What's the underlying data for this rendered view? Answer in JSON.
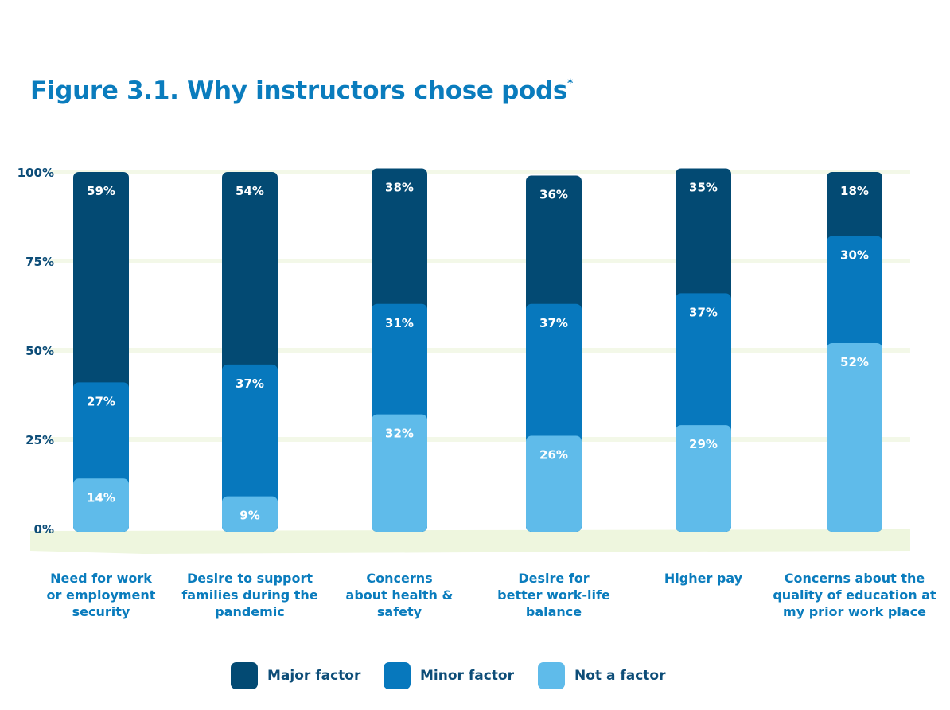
{
  "title": "Figure 3.1. Why instructors chose pods",
  "title_mark": "*",
  "chart_data": {
    "type": "bar",
    "stacked": true,
    "title": "Figure 3.1. Why instructors chose pods*",
    "xlabel": "",
    "ylabel": "",
    "ylim": [
      0,
      100
    ],
    "y_ticks": [
      "100%",
      "75%",
      "50%",
      "25%",
      "0%"
    ],
    "y_tick_values": [
      100,
      75,
      50,
      25,
      0
    ],
    "grid": true,
    "legend_position": "bottom",
    "categories": [
      [
        "Need for work",
        "or employment",
        "security"
      ],
      [
        "Desire to support",
        "families during the",
        "pandemic"
      ],
      [
        "Concerns",
        "about health &",
        "safety"
      ],
      [
        "Desire for",
        "better work-life",
        "balance"
      ],
      [
        "Higher pay"
      ],
      [
        "Concerns about the",
        "quality of education at",
        "my prior work place"
      ]
    ],
    "series": [
      {
        "name": "Not a factor",
        "color": "#5fbbea",
        "values": [
          14,
          9,
          32,
          26,
          29,
          52
        ]
      },
      {
        "name": "Minor factor",
        "color": "#0778bd",
        "values": [
          27,
          37,
          31,
          37,
          37,
          30
        ]
      },
      {
        "name": "Major factor",
        "color": "#034a73",
        "values": [
          59,
          54,
          38,
          36,
          35,
          18
        ]
      }
    ],
    "value_suffix": "%"
  },
  "legend": [
    {
      "label": "Major factor",
      "color": "#034a73"
    },
    {
      "label": "Minor factor",
      "color": "#0778bd"
    },
    {
      "label": "Not a factor",
      "color": "#5fbbea"
    }
  ]
}
